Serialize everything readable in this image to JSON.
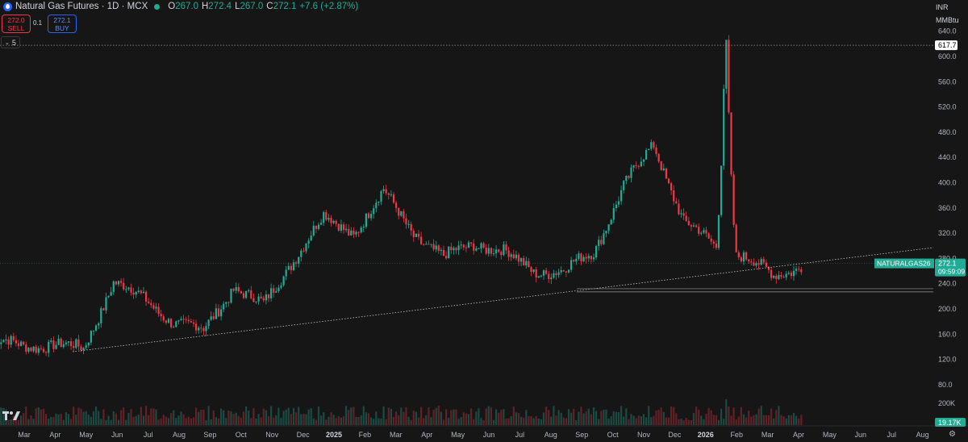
{
  "header": {
    "title": "Natural Gas Futures · 1D · MCX",
    "ohlc": [
      {
        "k": "O",
        "v": "267.0"
      },
      {
        "k": "H",
        "v": "272.4"
      },
      {
        "k": "L",
        "v": "267.0"
      },
      {
        "k": "C",
        "v": "272.1"
      }
    ],
    "change": "+7.6 (+2.87%)",
    "up_color": "#22ab94",
    "down_color": "#f23645"
  },
  "trade": {
    "sell_price": "272.0",
    "sell_label": "SELL",
    "spread": "0.1",
    "buy_price": "272.1",
    "buy_label": "BUY"
  },
  "indicators_toggle": "5",
  "scale": {
    "currency": "INR",
    "unit": "MMBtu",
    "price_ticks": [
      "640.0",
      "600.0",
      "560.0",
      "520.0",
      "480.0",
      "440.0",
      "400.0",
      "360.0",
      "320.0",
      "280.0",
      "240.0",
      "200.0",
      "160.0",
      "120.0",
      "80.0"
    ],
    "volume_tick": "200K",
    "high_label": "617.7",
    "last_price": "272.1",
    "countdown": "09:59:09",
    "symbol_tag": "NATURALGAS26",
    "volume_label": "19.17K"
  },
  "time_axis": [
    "Mar",
    "Apr",
    "May",
    "Jun",
    "Jul",
    "Aug",
    "Sep",
    "Oct",
    "Nov",
    "Dec",
    "2025",
    "Feb",
    "Mar",
    "Apr",
    "May",
    "Jun",
    "Jul",
    "Aug",
    "Sep",
    "Oct",
    "Nov",
    "Dec",
    "2026",
    "Feb",
    "Mar",
    "Apr",
    "May",
    "Jun",
    "Jul",
    "Aug"
  ],
  "chart_data": {
    "type": "candlestick",
    "symbol": "NATURALGAS26",
    "currency": "INR",
    "unit": "MMBtu",
    "ylim": [
      80,
      650
    ],
    "last": 272.1,
    "prev_high": 617.7,
    "keypoints": [
      {
        "t": "Feb 2024",
        "close": 150
      },
      {
        "t": "Mar 2024",
        "close": 140
      },
      {
        "t": "Apr 2024",
        "close": 145
      },
      {
        "t": "May 2024",
        "close": 135
      },
      {
        "t": "Jun 2024",
        "close": 245
      },
      {
        "t": "Jul 2024",
        "close": 215
      },
      {
        "t": "Aug 2024",
        "close": 180
      },
      {
        "t": "Sep 2024",
        "close": 165
      },
      {
        "t": "Oct 2024",
        "close": 235
      },
      {
        "t": "Nov 2024",
        "close": 205
      },
      {
        "t": "Dec 2024",
        "close": 280
      },
      {
        "t": "Jan 2025",
        "close": 345
      },
      {
        "t": "Feb 2025",
        "close": 320
      },
      {
        "t": "Mar 2025",
        "close": 385
      },
      {
        "t": "Apr 2025",
        "close": 320
      },
      {
        "t": "May 2025",
        "close": 280
      },
      {
        "t": "Jun 2025",
        "close": 305
      },
      {
        "t": "Jul 2025",
        "close": 290
      },
      {
        "t": "Aug 2025",
        "close": 260
      },
      {
        "t": "Sep 2025",
        "close": 260
      },
      {
        "t": "Oct 2025",
        "close": 290
      },
      {
        "t": "Nov 2025",
        "close": 395
      },
      {
        "t": "Dec 2025",
        "close": 460
      },
      {
        "t": "Jan 2026",
        "close": 340
      },
      {
        "t": "Feb 2026",
        "close": 300
      },
      {
        "t": "Mar 2026",
        "close": 285
      },
      {
        "t": "Apr 2026",
        "close": 250
      },
      {
        "t": "May 2026",
        "close": 272.1
      }
    ]
  }
}
